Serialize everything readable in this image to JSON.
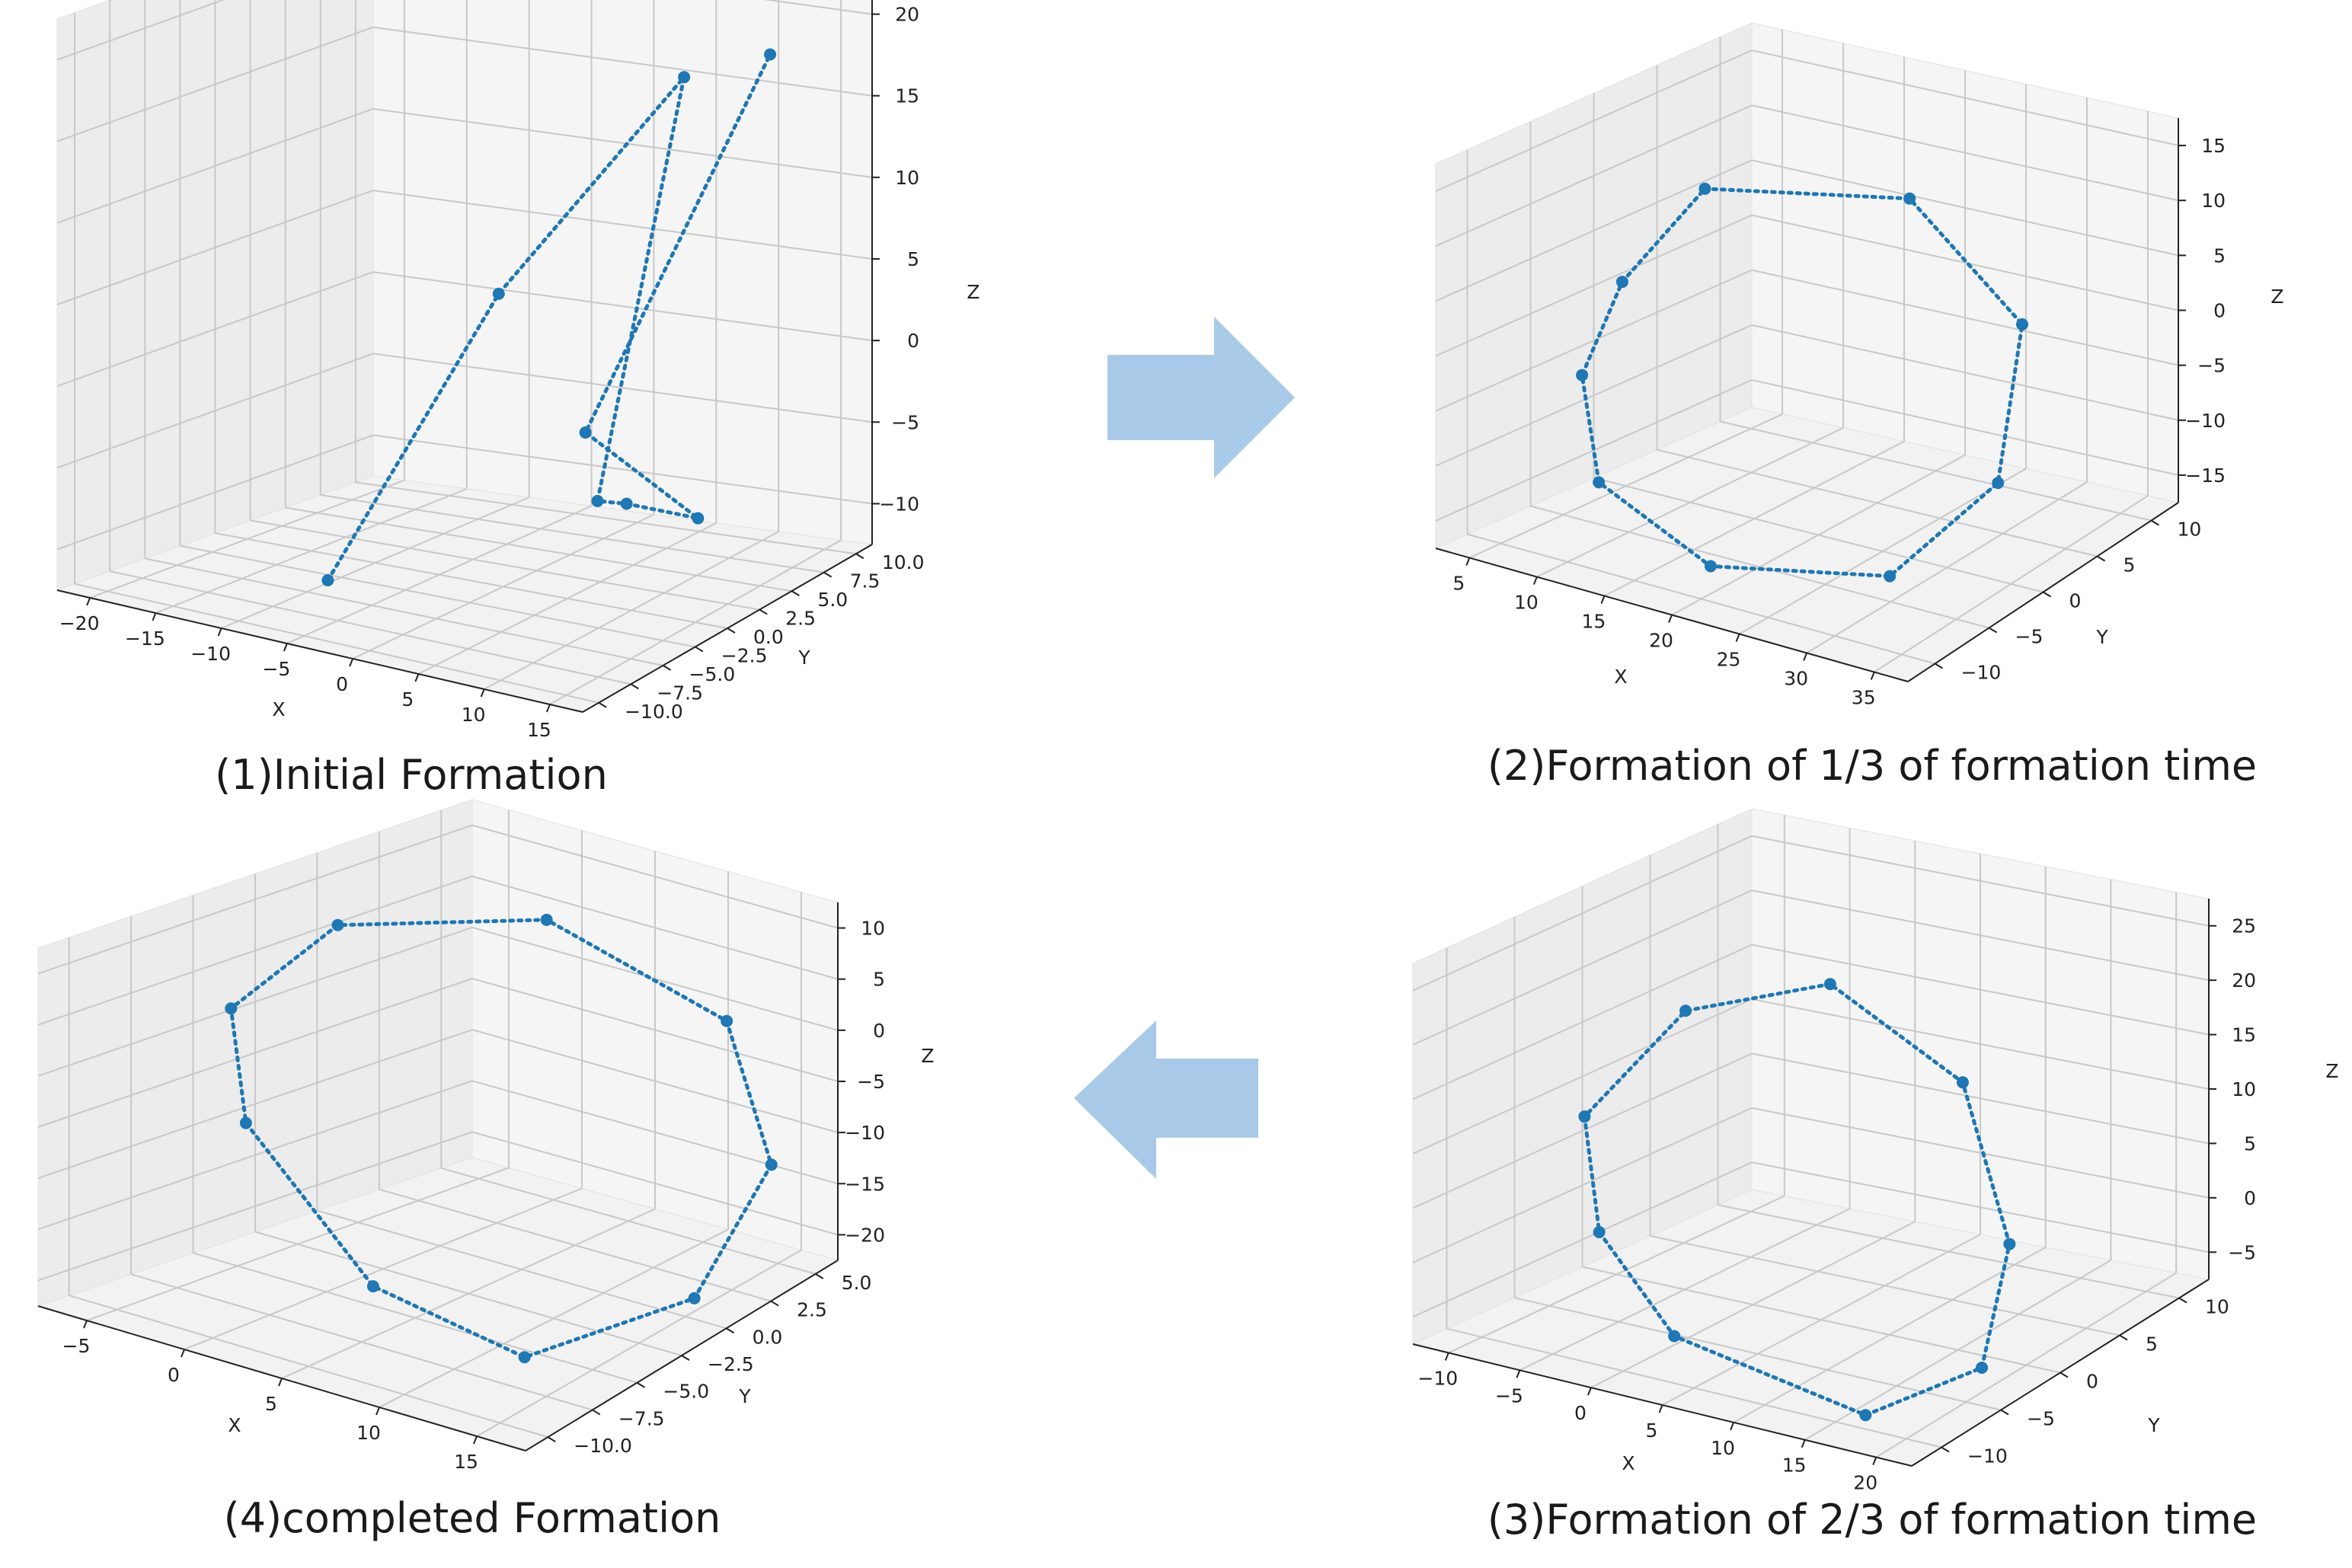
{
  "arrows": {
    "right": {
      "color": "#a9c9e8"
    },
    "left": {
      "color": "#a9c9e8"
    }
  },
  "series_color": "#1f77b4",
  "chart_data": [
    {
      "type": "scatter",
      "caption": "(1)Initial Formation",
      "xlabel": "X",
      "ylabel": "Y",
      "zlabel": "Z",
      "xticks": [
        "−20",
        "−15",
        "−10",
        "−5",
        "0",
        "5",
        "10",
        "15"
      ],
      "yticks": [
        "−10.0",
        "−7.5",
        "−5.0",
        "−2.5",
        "0.0",
        "2.5",
        "5.0",
        "7.5",
        "10.0"
      ],
      "zticks": [
        "−10",
        "−5",
        "0",
        "5",
        "10",
        "15",
        "20"
      ],
      "xlim": [
        -21,
        16
      ],
      "ylim": [
        -11,
        11
      ],
      "zlim": [
        -14,
        24
      ],
      "points": [
        {
          "x": -7,
          "y": -6,
          "z": -12
        },
        {
          "x": 2,
          "y": -3,
          "z": 8
        },
        {
          "x": 11,
          "y": 1,
          "z": 23
        },
        {
          "x": 13,
          "y": -7,
          "z": -2
        },
        {
          "x": 11,
          "y": -3,
          "z": -4
        },
        {
          "x": 14,
          "y": -1,
          "z": -5
        },
        {
          "x": -1,
          "y": 6,
          "z": -5
        },
        {
          "x": 12,
          "y": 6,
          "z": 23
        }
      ]
    },
    {
      "type": "scatter",
      "caption": "(2)Formation of 1/3 of formation time",
      "xlabel": "X",
      "ylabel": "Y",
      "zlabel": "Z",
      "xticks": [
        "5",
        "10",
        "15",
        "20",
        "25",
        "30",
        "35"
      ],
      "yticks": [
        "−10",
        "−5",
        "0",
        "5",
        "10"
      ],
      "zticks": [
        "−15",
        "−10",
        "−5",
        "0",
        "5",
        "10",
        "15"
      ],
      "xlim": [
        2,
        36
      ],
      "ylim": [
        -12,
        12
      ],
      "zlim": [
        -18,
        18
      ],
      "points": [
        {
          "x": 10,
          "y": 0,
          "z": 12
        },
        {
          "x": 20,
          "y": 5,
          "z": 12
        },
        {
          "x": 30,
          "y": 3,
          "z": 5
        },
        {
          "x": 33,
          "y": -2,
          "z": -6
        },
        {
          "x": 29,
          "y": -6,
          "z": -14
        },
        {
          "x": 18,
          "y": -8,
          "z": -16
        },
        {
          "x": 9,
          "y": -7,
          "z": -12
        },
        {
          "x": 4,
          "y": -3,
          "z": -6
        },
        {
          "x": 5,
          "y": -1,
          "z": 2
        }
      ]
    },
    {
      "type": "scatter",
      "caption": "(3)Formation of 2/3 of formation time",
      "xlabel": "X",
      "ylabel": "Y",
      "zlabel": "Z",
      "xticks": [
        "−10",
        "−5",
        "0",
        "5",
        "10",
        "15",
        "20"
      ],
      "yticks": [
        "−10",
        "−5",
        "0",
        "5",
        "10"
      ],
      "zticks": [
        "−5",
        "0",
        "5",
        "10",
        "15",
        "20",
        "25"
      ],
      "xlim": [
        -12,
        22
      ],
      "ylim": [
        -12,
        12
      ],
      "zlim": [
        -6,
        28
      ],
      "points": [
        {
          "x": 2,
          "y": 3,
          "z": 22
        },
        {
          "x": -4,
          "y": -1,
          "z": 20
        },
        {
          "x": -8,
          "y": -4,
          "z": 11
        },
        {
          "x": -7,
          "y": -4,
          "z": 1
        },
        {
          "x": 1,
          "y": -7,
          "z": -4
        },
        {
          "x": 15,
          "y": -8,
          "z": -6
        },
        {
          "x": 21,
          "y": -6,
          "z": -1
        },
        {
          "x": 20,
          "y": -3,
          "z": 8
        },
        {
          "x": 12,
          "y": 2,
          "z": 17
        }
      ]
    },
    {
      "type": "scatter",
      "caption": "(4)completed Formation",
      "xlabel": "X",
      "ylabel": "Y",
      "zlabel": "Z",
      "xticks": [
        "−5",
        "0",
        "5",
        "10",
        "15"
      ],
      "yticks": [
        "−10.0",
        "−7.5",
        "−5.0",
        "−2.5",
        "0.0",
        "2.5",
        "5.0"
      ],
      "zticks": [
        "−20",
        "−15",
        "−10",
        "−5",
        "0",
        "5",
        "10"
      ],
      "xlim": [
        -6,
        19
      ],
      "ylim": [
        -11,
        7
      ],
      "zlim": [
        -22,
        12
      ],
      "points": [
        {
          "x": 4,
          "y": 2,
          "z": 10
        },
        {
          "x": -3,
          "y": -1,
          "z": 8
        },
        {
          "x": -6,
          "y": -3,
          "z": 0
        },
        {
          "x": -4,
          "y": -4,
          "z": -9
        },
        {
          "x": 5,
          "y": -6,
          "z": -18
        },
        {
          "x": 14,
          "y": -7,
          "z": -19
        },
        {
          "x": 19,
          "y": -4,
          "z": -13
        },
        {
          "x": 18,
          "y": 0,
          "z": -4
        },
        {
          "x": 12,
          "y": 3,
          "z": 4
        }
      ]
    }
  ]
}
